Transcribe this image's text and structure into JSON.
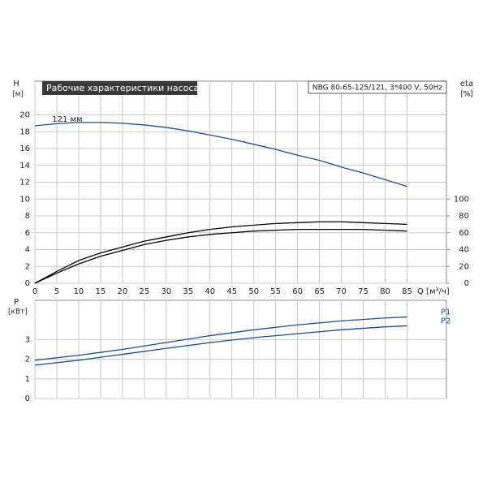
{
  "chart_data": [
    {
      "type": "line",
      "title": "Рабочие характеристики насоса",
      "subtitle": "NBG 80-65-125/121, 3*400 V, 50Hz",
      "y_label": "H",
      "y_unit": "[м]",
      "y2_label": "eta",
      "y2_unit": "[%]",
      "x_label": "Q [м³/ч]",
      "x": [
        0,
        5,
        10,
        15,
        20,
        25,
        30,
        35,
        40,
        45,
        50,
        55,
        60,
        65,
        70,
        75,
        80,
        85
      ],
      "xlim": [
        0,
        94
      ],
      "xticks": [
        0,
        5,
        10,
        15,
        20,
        25,
        30,
        35,
        40,
        45,
        50,
        55,
        60,
        65,
        70,
        75,
        80,
        85
      ],
      "ylim": [
        0,
        24
      ],
      "yticks": [
        0,
        2,
        4,
        6,
        8,
        10,
        12,
        14,
        16,
        18,
        20
      ],
      "y2lim": [
        0,
        240
      ],
      "y2ticks": [
        0,
        20,
        40,
        60,
        80,
        100
      ],
      "grid": true,
      "series": [
        {
          "name": "121 мм",
          "color": "#1f4e8c",
          "values": [
            18.7,
            18.95,
            19.1,
            19.1,
            19.0,
            18.8,
            18.5,
            18.1,
            17.6,
            17.1,
            16.5,
            15.9,
            15.2,
            14.6,
            13.8,
            13.1,
            12.3,
            11.5
          ]
        },
        {
          "color": "#000000",
          "axis": "y2",
          "values": [
            0,
            14,
            27,
            36,
            43,
            50,
            55,
            60,
            64,
            67,
            69,
            71,
            72,
            73,
            73,
            72,
            71,
            70
          ]
        },
        {
          "color": "#000000",
          "axis": "y2",
          "values": [
            0,
            12,
            23,
            32,
            39,
            46,
            51,
            55,
            58,
            60,
            62,
            63,
            64,
            64,
            64,
            64,
            63,
            62
          ]
        }
      ]
    },
    {
      "type": "line",
      "y_label": "P",
      "y_unit": "[кВт]",
      "x": [
        0,
        10,
        20,
        30,
        40,
        50,
        60,
        70,
        80,
        85
      ],
      "xlim": [
        0,
        94
      ],
      "xticks": [
        0,
        5,
        10,
        15,
        20,
        25,
        30,
        35,
        40,
        45,
        50,
        55,
        60,
        65,
        70,
        75,
        80,
        85
      ],
      "ylim": [
        0,
        5
      ],
      "yticks": [
        0,
        1,
        2,
        3
      ],
      "grid": true,
      "series": [
        {
          "name": "P1",
          "color": "#1f4e8c",
          "values": [
            1.95,
            2.2,
            2.5,
            2.85,
            3.2,
            3.5,
            3.75,
            3.95,
            4.1,
            4.15
          ]
        },
        {
          "name": "P2",
          "color": "#1f4e8c",
          "values": [
            1.7,
            1.95,
            2.25,
            2.55,
            2.85,
            3.1,
            3.3,
            3.5,
            3.65,
            3.7
          ]
        }
      ]
    }
  ]
}
